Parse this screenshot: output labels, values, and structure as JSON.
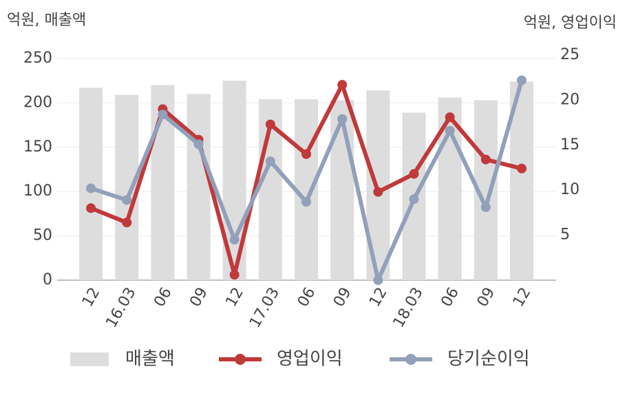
{
  "chart_data": {
    "type": "bar-line",
    "y_label": "억원, 매출액",
    "y2_label": "억원, 영업이익",
    "categories": [
      "12",
      "16.03",
      "06",
      "09",
      "12",
      "17.03",
      "06",
      "09",
      "12",
      "18.03",
      "06",
      "09",
      "12"
    ],
    "series": [
      {
        "name": "매출액",
        "type": "bar",
        "color": "#dddddd",
        "values": [
          217,
          209,
          220,
          210,
          225,
          204,
          204,
          203,
          214,
          189,
          206,
          203,
          224
        ]
      },
      {
        "name": "영업이익",
        "type": "line",
        "axis": "y2",
        "color": "#c0393b",
        "values": [
          8.0,
          6.4,
          19.0,
          15.6,
          0.6,
          17.3,
          14.0,
          21.7,
          9.8,
          11.8,
          18.1,
          13.4,
          12.4
        ]
      },
      {
        "name": "당기순이익",
        "type": "line",
        "axis": "y2",
        "color": "#92a0ba",
        "values": [
          10.2,
          8.9,
          18.4,
          15.1,
          4.5,
          13.2,
          8.7,
          17.9,
          0.0,
          9.0,
          16.6,
          8.1,
          22.2
        ]
      }
    ],
    "ylim": [
      0,
      250
    ],
    "yticks": [
      0,
      50,
      100,
      150,
      200,
      250
    ],
    "y2lim": [
      0,
      25
    ],
    "y2ticks": [
      5,
      10,
      15,
      20,
      25
    ],
    "grid": true
  }
}
